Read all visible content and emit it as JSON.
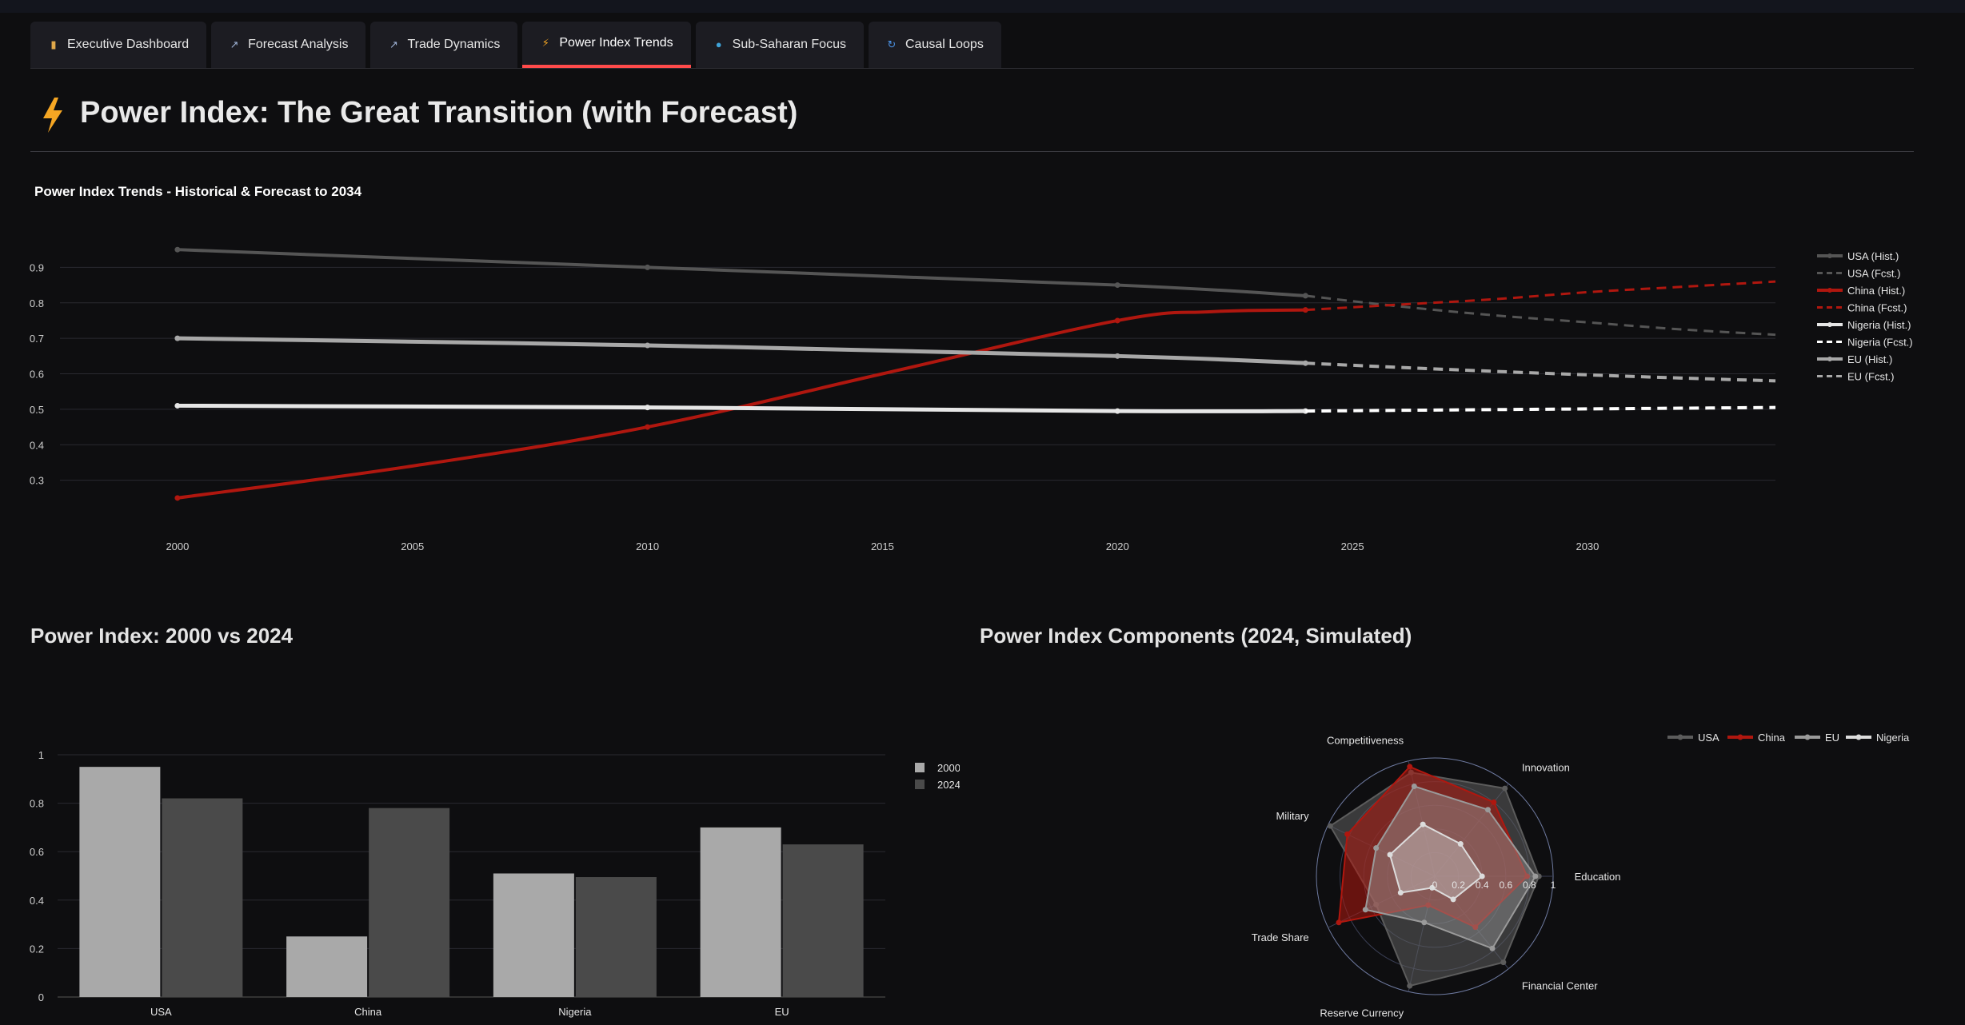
{
  "tabs": [
    {
      "label": "Executive Dashboard",
      "icon": "bar-chart-icon",
      "active": false
    },
    {
      "label": "Forecast Analysis",
      "icon": "trend-chart-icon",
      "active": false
    },
    {
      "label": "Trade Dynamics",
      "icon": "trend-chart-icon",
      "active": false
    },
    {
      "label": "Power Index Trends",
      "icon": "lightning-icon",
      "active": true
    },
    {
      "label": "Sub-Saharan Focus",
      "icon": "globe-icon",
      "active": false
    },
    {
      "label": "Causal Loops",
      "icon": "refresh-icon",
      "active": false
    }
  ],
  "page": {
    "title": "Power Index: The Great Transition (with Forecast)",
    "accent": "#ff4b4b"
  },
  "sections": {
    "left_title": "Power Index: 2000 vs 2024",
    "right_title": "Power Index Components (2024, Simulated)"
  },
  "chart_data": [
    {
      "type": "line",
      "title": "Power Index Trends - Historical & Forecast to 2034",
      "xlabel": "",
      "ylabel": "",
      "xlim": [
        1997.5,
        2034
      ],
      "ylim": [
        0.2,
        1.0
      ],
      "x_ticks": [
        2000,
        2005,
        2010,
        2015,
        2020,
        2025,
        2030
      ],
      "y_ticks": [
        0.3,
        0.4,
        0.5,
        0.6,
        0.7,
        0.8,
        0.9
      ],
      "grid": true,
      "legend": "right",
      "series": [
        {
          "name": "USA (Hist.)",
          "color": "#555555",
          "dash": false,
          "width": 4,
          "x": [
            2000,
            2010,
            2020,
            2024
          ],
          "values": [
            0.95,
            0.9,
            0.85,
            0.82
          ],
          "markers": true
        },
        {
          "name": "USA (Fcst.)",
          "color": "#555555",
          "dash": true,
          "width": 3,
          "x": [
            2024,
            2026,
            2028,
            2030,
            2032,
            2034
          ],
          "values": [
            0.82,
            0.79,
            0.765,
            0.745,
            0.725,
            0.71
          ],
          "markers": false
        },
        {
          "name": "China (Hist.)",
          "color": "#b0170f",
          "dash": false,
          "width": 4,
          "x": [
            2000,
            2005,
            2010,
            2015,
            2020,
            2022,
            2024
          ],
          "values": [
            0.25,
            0.34,
            0.45,
            0.6,
            0.75,
            0.775,
            0.78
          ],
          "markers": true
        },
        {
          "name": "China (Fcst.)",
          "color": "#b0170f",
          "dash": true,
          "width": 3,
          "x": [
            2024,
            2026,
            2028,
            2030,
            2032,
            2034
          ],
          "values": [
            0.78,
            0.795,
            0.81,
            0.83,
            0.845,
            0.86
          ],
          "markers": false
        },
        {
          "name": "Nigeria (Hist.)",
          "color": "#e6e6e6",
          "dash": false,
          "width": 5,
          "x": [
            2000,
            2010,
            2020,
            2024
          ],
          "values": [
            0.51,
            0.505,
            0.495,
            0.495
          ],
          "markers": true
        },
        {
          "name": "Nigeria (Fcst.)",
          "color": "#ffffff",
          "dash": true,
          "width": 4,
          "x": [
            2024,
            2026,
            2028,
            2030,
            2032,
            2034
          ],
          "values": [
            0.495,
            0.497,
            0.499,
            0.501,
            0.503,
            0.505
          ],
          "markers": false
        },
        {
          "name": "EU (Hist.)",
          "color": "#a8a8a8",
          "dash": false,
          "width": 5,
          "x": [
            2000,
            2010,
            2020,
            2024
          ],
          "values": [
            0.7,
            0.68,
            0.65,
            0.63
          ],
          "markers": true
        },
        {
          "name": "EU (Fcst.)",
          "color": "#a8a8a8",
          "dash": true,
          "width": 4,
          "x": [
            2024,
            2026,
            2028,
            2030,
            2032,
            2034
          ],
          "values": [
            0.63,
            0.618,
            0.607,
            0.597,
            0.588,
            0.58
          ],
          "markers": false
        }
      ]
    },
    {
      "type": "bar",
      "categories": [
        "USA",
        "China",
        "Nigeria",
        "EU"
      ],
      "ylim": [
        0,
        1.0
      ],
      "y_ticks": [
        0,
        0.2,
        0.4,
        0.6,
        0.8,
        1
      ],
      "y_tick_labels": [
        "0",
        "0.2",
        "0.4",
        "0.6",
        "0.8",
        "1"
      ],
      "grid": true,
      "legend": "right",
      "series": [
        {
          "name": "2000",
          "color": "#a9a9a9",
          "values": [
            0.95,
            0.25,
            0.51,
            0.7
          ]
        },
        {
          "name": "2024",
          "color": "#4a4a4a",
          "values": [
            0.82,
            0.78,
            0.495,
            0.63
          ]
        }
      ]
    },
    {
      "type": "radar",
      "axes": [
        "Education",
        "Innovation",
        "Competitiveness",
        "Military",
        "Trade Share",
        "Reserve Currency",
        "Financial Center"
      ],
      "radial_ticks": [
        0,
        0.2,
        0.4,
        0.6,
        0.8,
        1
      ],
      "radial_tick_labels": [
        "0",
        "0.2",
        "0.4",
        "0.6",
        "0.8",
        "1"
      ],
      "rlim": [
        0,
        1
      ],
      "legend": "top-right",
      "series": [
        {
          "name": "USA",
          "color": "#5c5c5c",
          "fill": "rgba(95,95,95,0.55)",
          "values": [
            0.88,
            0.95,
            0.9,
            0.98,
            0.55,
            0.95,
            0.93
          ]
        },
        {
          "name": "China",
          "color": "#b0170f",
          "fill": "rgba(176,23,15,0.55)",
          "values": [
            0.78,
            0.8,
            0.95,
            0.82,
            0.9,
            0.25,
            0.55
          ]
        },
        {
          "name": "EU",
          "color": "#9a9a9a",
          "fill": "rgba(150,150,150,0.45)",
          "values": [
            0.85,
            0.72,
            0.78,
            0.55,
            0.65,
            0.4,
            0.78
          ]
        },
        {
          "name": "Nigeria",
          "color": "#dcdcdc",
          "fill": "rgba(210,210,210,0.40)",
          "values": [
            0.4,
            0.35,
            0.45,
            0.42,
            0.32,
            0.1,
            0.25
          ]
        }
      ]
    }
  ]
}
